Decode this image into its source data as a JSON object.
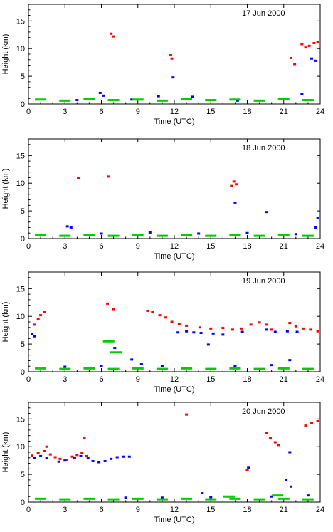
{
  "chart_data": [
    {
      "type": "scatter",
      "title": "17 Jun 2000",
      "xlabel": "Time (UTC)",
      "ylabel": "Height (km)",
      "xlim": [
        0,
        24
      ],
      "ylim": [
        0,
        18
      ],
      "xticks": [
        0,
        3,
        6,
        9,
        12,
        15,
        18,
        21,
        24
      ],
      "yticks": [
        0,
        5,
        10,
        15
      ],
      "grid": false,
      "legend": "none",
      "series": [
        {
          "color": "#ff0000",
          "points": [
            [
              6.8,
              12.7
            ],
            [
              7.0,
              12.2
            ],
            [
              11.7,
              8.8
            ],
            [
              11.8,
              8.2
            ],
            [
              21.6,
              8.3
            ],
            [
              21.9,
              7.2
            ],
            [
              22.5,
              10.8
            ],
            [
              22.8,
              10.2
            ],
            [
              23.1,
              10.5
            ],
            [
              23.5,
              11.0
            ],
            [
              23.8,
              11.2
            ]
          ]
        },
        {
          "color": "#0000ff",
          "points": [
            [
              5.9,
              2.0
            ],
            [
              6.2,
              1.5
            ],
            [
              11.9,
              4.8
            ],
            [
              10.7,
              1.4
            ],
            [
              13.5,
              1.3
            ],
            [
              22.5,
              1.8
            ],
            [
              23.3,
              8.2
            ],
            [
              23.6,
              7.8
            ],
            [
              4.0,
              0.7
            ],
            [
              8.5,
              0.8
            ],
            [
              17.2,
              0.6
            ]
          ]
        },
        {
          "color": "#00cc00",
          "points": [
            [
              1,
              0.8
            ],
            [
              3,
              0.6
            ],
            [
              5,
              0.9
            ],
            [
              7,
              0.7
            ],
            [
              9,
              0.8
            ],
            [
              11,
              0.6
            ],
            [
              13,
              0.9
            ],
            [
              15,
              0.7
            ],
            [
              17,
              0.8
            ],
            [
              19,
              0.6
            ],
            [
              21,
              0.9
            ],
            [
              23,
              0.7
            ]
          ]
        }
      ]
    },
    {
      "type": "scatter",
      "title": "18 Jun 2000",
      "xlabel": "Time (UTC)",
      "ylabel": "Height (km)",
      "xlim": [
        0,
        24
      ],
      "ylim": [
        0,
        18
      ],
      "xticks": [
        0,
        3,
        6,
        9,
        12,
        15,
        18,
        21,
        24
      ],
      "yticks": [
        0,
        5,
        10,
        15
      ],
      "grid": false,
      "legend": "none",
      "series": [
        {
          "color": "#ff0000",
          "points": [
            [
              4.1,
              10.9
            ],
            [
              6.6,
              11.2
            ],
            [
              16.7,
              9.5
            ],
            [
              16.9,
              10.3
            ],
            [
              17.1,
              9.8
            ]
          ]
        },
        {
          "color": "#0000ff",
          "points": [
            [
              3.2,
              2.2
            ],
            [
              3.5,
              2.0
            ],
            [
              17.0,
              6.5
            ],
            [
              19.6,
              4.8
            ],
            [
              23.8,
              3.8
            ],
            [
              23.6,
              2.0
            ],
            [
              6,
              0.9
            ],
            [
              10,
              1.1
            ],
            [
              14,
              0.9
            ],
            [
              18,
              1.0
            ],
            [
              22,
              0.8
            ]
          ]
        },
        {
          "color": "#00cc00",
          "points": [
            [
              1,
              0.6
            ],
            [
              3,
              0.5
            ],
            [
              5,
              0.7
            ],
            [
              7,
              0.5
            ],
            [
              9,
              0.6
            ],
            [
              11,
              0.5
            ],
            [
              13,
              0.7
            ],
            [
              15,
              0.5
            ],
            [
              17,
              0.6
            ],
            [
              19,
              0.5
            ],
            [
              21,
              0.7
            ],
            [
              23,
              0.5
            ]
          ]
        }
      ]
    },
    {
      "type": "scatter",
      "title": "19 Jun 2000",
      "xlabel": "Time (UTC)",
      "ylabel": "Height (km)",
      "xlim": [
        0,
        24
      ],
      "ylim": [
        0,
        18
      ],
      "xticks": [
        0,
        3,
        6,
        9,
        12,
        15,
        18,
        21,
        24
      ],
      "yticks": [
        0,
        5,
        10,
        15
      ],
      "grid": false,
      "legend": "none",
      "series": [
        {
          "color": "#ff0000",
          "points": [
            [
              0.5,
              8.5
            ],
            [
              0.8,
              9.5
            ],
            [
              1.0,
              10.2
            ],
            [
              1.3,
              10.8
            ],
            [
              6.5,
              12.3
            ],
            [
              7.0,
              11.3
            ],
            [
              9.8,
              11.0
            ],
            [
              10.2,
              10.8
            ],
            [
              10.8,
              10.2
            ],
            [
              11.3,
              9.8
            ],
            [
              11.8,
              9.0
            ],
            [
              12.4,
              8.6
            ],
            [
              13.0,
              8.3
            ],
            [
              14.1,
              8.0
            ],
            [
              15.0,
              7.8
            ],
            [
              16.0,
              7.9
            ],
            [
              16.8,
              7.6
            ],
            [
              17.5,
              7.8
            ],
            [
              18.3,
              8.5
            ],
            [
              19.0,
              8.9
            ],
            [
              19.6,
              8.5
            ],
            [
              20.0,
              7.6
            ],
            [
              21.5,
              8.8
            ],
            [
              22.0,
              8.2
            ],
            [
              22.6,
              7.8
            ],
            [
              23.2,
              7.6
            ],
            [
              23.8,
              7.3
            ]
          ]
        },
        {
          "color": "#0000ff",
          "points": [
            [
              0.3,
              6.8
            ],
            [
              0.5,
              6.4
            ],
            [
              7.1,
              4.3
            ],
            [
              12.3,
              7.1
            ],
            [
              13.0,
              7.3
            ],
            [
              13.6,
              7.1
            ],
            [
              14.2,
              7.0
            ],
            [
              15.2,
              6.9
            ],
            [
              16.0,
              6.7
            ],
            [
              17.6,
              7.2
            ],
            [
              19.6,
              7.6
            ],
            [
              20.3,
              7.2
            ],
            [
              22.1,
              7.2
            ],
            [
              21.3,
              7.3
            ],
            [
              14.8,
              4.9
            ],
            [
              8.5,
              2.2
            ],
            [
              9.3,
              1.4
            ],
            [
              11.0,
              1.0
            ],
            [
              3,
              0.9
            ],
            [
              6,
              1.0
            ],
            [
              17,
              1.0
            ],
            [
              20,
              1.2
            ],
            [
              21.5,
              2.1
            ]
          ]
        },
        {
          "color": "#00cc00",
          "points": [
            [
              1,
              0.6
            ],
            [
              3,
              0.5
            ],
            [
              5,
              0.6
            ],
            [
              7,
              0.5
            ],
            [
              9,
              0.6
            ],
            [
              11,
              0.5
            ],
            [
              13,
              0.6
            ],
            [
              15,
              0.5
            ],
            [
              17,
              0.6
            ],
            [
              19,
              0.5
            ],
            [
              21,
              0.6
            ],
            [
              23,
              0.5
            ],
            [
              6.6,
              5.5
            ],
            [
              7.2,
              3.5
            ]
          ]
        }
      ]
    },
    {
      "type": "scatter",
      "title": "20 Jun 2000",
      "xlabel": "Time (UTC)",
      "ylabel": "Height (km)",
      "xlim": [
        0,
        24
      ],
      "ylim": [
        0,
        18
      ],
      "xticks": [
        0,
        3,
        6,
        9,
        12,
        15,
        18,
        21,
        24
      ],
      "yticks": [
        0,
        5,
        10,
        15
      ],
      "grid": false,
      "legend": "none",
      "series": [
        {
          "color": "#ff0000",
          "points": [
            [
              0.3,
              8.4
            ],
            [
              0.8,
              8.9
            ],
            [
              1.3,
              9.2
            ],
            [
              1.8,
              8.6
            ],
            [
              2.2,
              8.1
            ],
            [
              2.6,
              7.8
            ],
            [
              3.1,
              7.6
            ],
            [
              3.6,
              8.2
            ],
            [
              4.0,
              8.5
            ],
            [
              4.4,
              8.9
            ],
            [
              4.8,
              8.3
            ],
            [
              1.5,
              10.0
            ],
            [
              4.6,
              11.5
            ],
            [
              13.0,
              15.8
            ],
            [
              18.0,
              5.8
            ],
            [
              19.6,
              12.5
            ],
            [
              19.9,
              11.6
            ],
            [
              20.3,
              10.8
            ],
            [
              20.6,
              10.3
            ],
            [
              22.8,
              13.8
            ],
            [
              23.3,
              14.3
            ],
            [
              23.8,
              14.6
            ]
          ]
        },
        {
          "color": "#0000ff",
          "points": [
            [
              0.5,
              8.0
            ],
            [
              1.0,
              8.3
            ],
            [
              1.5,
              7.9
            ],
            [
              2.5,
              7.3
            ],
            [
              3.0,
              7.5
            ],
            [
              3.8,
              8.0
            ],
            [
              4.3,
              8.3
            ],
            [
              4.9,
              7.9
            ],
            [
              5.3,
              7.4
            ],
            [
              5.8,
              7.2
            ],
            [
              6.3,
              7.4
            ],
            [
              6.8,
              7.8
            ],
            [
              7.3,
              8.1
            ],
            [
              7.8,
              8.2
            ],
            [
              8.3,
              8.2
            ],
            [
              18.1,
              6.2
            ],
            [
              21.5,
              9.0
            ],
            [
              21.2,
              4.0
            ],
            [
              21.6,
              2.8
            ],
            [
              14.3,
              1.6
            ],
            [
              8,
              0.8
            ],
            [
              11,
              0.8
            ],
            [
              15,
              0.9
            ],
            [
              20,
              1.0
            ],
            [
              23,
              1.2
            ]
          ]
        },
        {
          "color": "#00cc00",
          "points": [
            [
              1,
              0.6
            ],
            [
              3,
              0.5
            ],
            [
              5,
              0.6
            ],
            [
              7,
              0.5
            ],
            [
              9,
              0.6
            ],
            [
              11,
              0.5
            ],
            [
              13,
              0.6
            ],
            [
              15,
              0.5
            ],
            [
              17,
              0.6
            ],
            [
              19,
              0.5
            ],
            [
              21,
              0.6
            ],
            [
              23,
              0.5
            ],
            [
              16.5,
              1.0
            ],
            [
              20.5,
              1.2
            ]
          ]
        }
      ]
    }
  ]
}
